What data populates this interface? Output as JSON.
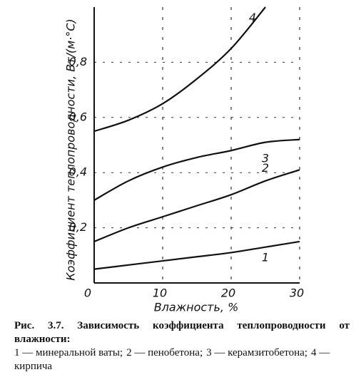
{
  "chart_data": {
    "type": "line",
    "ylabel": "Коэффициент теплопроводности, Вт/(м·°С)",
    "xlabel": "Влажность, %",
    "caption_title": "Рис. 3.7. Зависимость коэффициента теплопроводности от влажности:",
    "x": [
      0,
      5,
      10,
      15,
      20,
      25,
      30
    ],
    "series": [
      {
        "name": "1 — минеральной ваты;",
        "label": "1",
        "color": "#111111",
        "values": [
          0.05,
          0.065,
          0.08,
          0.095,
          0.11,
          0.13,
          0.15
        ]
      },
      {
        "name": "2 — пенобетона;",
        "label": "2",
        "color": "#111111",
        "values": [
          0.15,
          0.2,
          0.24,
          0.28,
          0.32,
          0.37,
          0.41
        ]
      },
      {
        "name": "3 — керамзитобетона;",
        "label": "3",
        "color": "#111111",
        "values": [
          0.3,
          0.37,
          0.42,
          0.455,
          0.48,
          0.51,
          0.52
        ]
      },
      {
        "name": "4 — кирпича",
        "label": "4",
        "color": "#111111",
        "values": [
          0.55,
          0.59,
          0.65,
          0.74,
          0.85,
          1.0,
          null
        ]
      }
    ],
    "xlim": [
      0,
      30
    ],
    "ylim": [
      0,
      1
    ],
    "xticks": [
      0,
      10,
      20,
      30
    ],
    "yticks": [
      {
        "value": 0.2,
        "label": "0,2"
      },
      {
        "value": 0.4,
        "label": "0,4"
      },
      {
        "value": 0.6,
        "label": "0,6"
      },
      {
        "value": 0.8,
        "label": "0,8"
      }
    ],
    "grid": true
  }
}
